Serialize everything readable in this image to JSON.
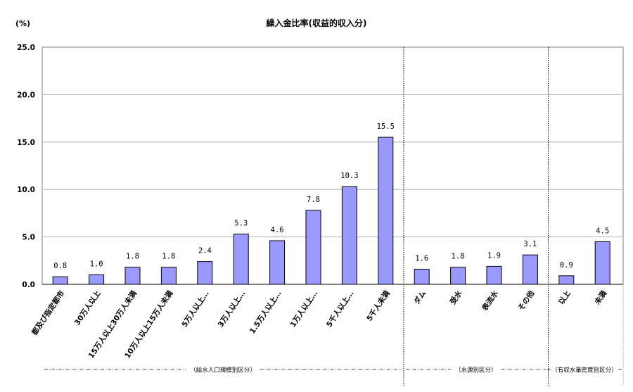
{
  "chart_data": {
    "type": "bar",
    "title": "繰入金比率(収益的収入分)",
    "unit_label": "(%)",
    "ylim": [
      0,
      25
    ],
    "yticks": [
      "0.0",
      "5.0",
      "10.0",
      "15.0",
      "20.0",
      "25.0"
    ],
    "grid": true,
    "bar_color": "#9999ff",
    "categories": [
      "都及び指定都市",
      "30万人以上",
      "15万人以上30万人未満",
      "10万人以上15万人未満",
      "5万人以上…",
      "3万人以上…",
      "1.5万人以上…",
      "1万人以上…",
      "5千人以上…",
      "5千人未満",
      "ダム",
      "受水",
      "表流水",
      "その他",
      "以上",
      "未満"
    ],
    "values": [
      0.8,
      1.0,
      1.8,
      1.8,
      2.4,
      5.3,
      4.6,
      7.8,
      10.3,
      15.5,
      1.6,
      1.8,
      1.9,
      3.1,
      0.9,
      4.5
    ],
    "value_labels": [
      "0.8",
      "1.0",
      "1.8",
      "1.8",
      "2.4",
      "5.3",
      "4.6",
      "7.8",
      "10.3",
      "15.5",
      "1.6",
      "1.8",
      "1.9",
      "3.1",
      "0.9",
      "4.5"
    ],
    "groups": [
      {
        "label": "（給水人口規模別区分）",
        "start": 0,
        "end": 9
      },
      {
        "label": "（水源別区分）",
        "start": 10,
        "end": 13
      },
      {
        "label": "（有収水量密度別区分）",
        "start": 14,
        "end": 15
      }
    ]
  }
}
